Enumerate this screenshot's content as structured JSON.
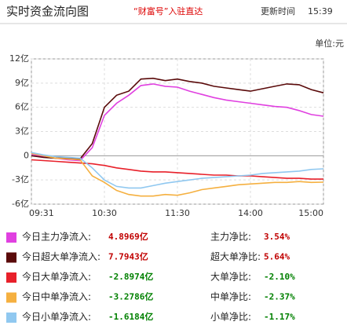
{
  "header": {
    "title": "实时资金流向图",
    "link": "“财富号”入驻直达",
    "update_label": "更新时间",
    "update_time": "15:39"
  },
  "chart_data": {
    "type": "line",
    "unit": "单位:元",
    "x": [
      0,
      10,
      20,
      30,
      40,
      50,
      60,
      70,
      80,
      90,
      100,
      110,
      120,
      130,
      140,
      150,
      160,
      170,
      180,
      190,
      200,
      210,
      220,
      230,
      240
    ],
    "xlim": [
      0,
      240
    ],
    "xticks": [
      {
        "value": 0,
        "label": "09:31"
      },
      {
        "value": 60,
        "label": "10:30"
      },
      {
        "value": 120,
        "label": "11:30"
      },
      {
        "value": 180,
        "label": "14:00"
      },
      {
        "value": 240,
        "label": "15:00"
      }
    ],
    "ylim": [
      -6,
      12
    ],
    "yticks": [
      {
        "value": 12,
        "label": "12亿"
      },
      {
        "value": 9,
        "label": "9亿"
      },
      {
        "value": 6,
        "label": "6亿"
      },
      {
        "value": 3,
        "label": "3亿"
      },
      0,
      {
        "value": -3,
        "label": "-3亿"
      },
      {
        "value": -6,
        "label": "-6亿"
      }
    ],
    "grid": true,
    "series": [
      {
        "name": "今日主力净流入:",
        "color": "#e040e0",
        "values": [
          0.2,
          -0.1,
          -0.3,
          -0.5,
          -0.6,
          1,
          5,
          6.5,
          7.5,
          8.7,
          8.9,
          8.6,
          8.5,
          8,
          7.6,
          7.2,
          6.9,
          6.7,
          6.5,
          6.3,
          6.1,
          6,
          5.6,
          5.1,
          4.8969
        ]
      },
      {
        "name": "今日超大单净流入:",
        "color": "#5a0a0a",
        "values": [
          0,
          -0.2,
          -0.3,
          -0.3,
          -0.4,
          1.5,
          6,
          7.5,
          8,
          9.5,
          9.6,
          9.3,
          9.5,
          9.2,
          9,
          8.6,
          8.4,
          8.2,
          8,
          8.3,
          8.6,
          8.9,
          8.8,
          8.2,
          7.7943
        ]
      },
      {
        "name": "今日大单净流入:",
        "color": "#e8202a",
        "values": [
          -0.5,
          -0.6,
          -0.7,
          -0.8,
          -0.9,
          -1,
          -1.2,
          -1.5,
          -1.7,
          -1.9,
          -2,
          -2,
          -2.1,
          -2.2,
          -2.3,
          -2.4,
          -2.4,
          -2.5,
          -2.5,
          -2.6,
          -2.7,
          -2.8,
          -2.8,
          -2.9,
          -2.8974
        ]
      },
      {
        "name": "今日中单净流入:",
        "color": "#f5b040",
        "values": [
          0.3,
          0,
          -0.3,
          -0.4,
          -0.5,
          -2.5,
          -3.3,
          -4.3,
          -4.8,
          -5,
          -5,
          -4.8,
          -4.9,
          -4.6,
          -4.2,
          -4,
          -3.8,
          -3.6,
          -3.5,
          -3.4,
          -3.3,
          -3.3,
          -3.2,
          -3.3,
          -3.2786
        ]
      },
      {
        "name": "今日小单净流入:",
        "color": "#90c8f0",
        "values": [
          0.4,
          0.1,
          -0.1,
          -0.2,
          -0.3,
          -1.5,
          -3,
          -3.8,
          -4,
          -4,
          -3.7,
          -3.4,
          -3.2,
          -3,
          -2.8,
          -2.7,
          -2.6,
          -2.5,
          -2.4,
          -2.2,
          -2.1,
          -2,
          -1.9,
          -1.7,
          -1.6184
        ]
      }
    ]
  },
  "table": {
    "rows": [
      {
        "value": "4.8969亿",
        "ratio_label": "主力净比:",
        "ratio": "3.54%",
        "color": "#c00000"
      },
      {
        "value": "7.7943亿",
        "ratio_label": "超大单净比:",
        "ratio": "5.64%",
        "color": "#c00000"
      },
      {
        "value": "-2.8974亿",
        "ratio_label": "大单净比:",
        "ratio": "-2.10%",
        "color": "#008000"
      },
      {
        "value": "-3.2786亿",
        "ratio_label": "中单净比:",
        "ratio": "-2.37%",
        "color": "#008000"
      },
      {
        "value": "-1.6184亿",
        "ratio_label": "小单净比:",
        "ratio": "-1.17%",
        "color": "#008000"
      }
    ]
  }
}
